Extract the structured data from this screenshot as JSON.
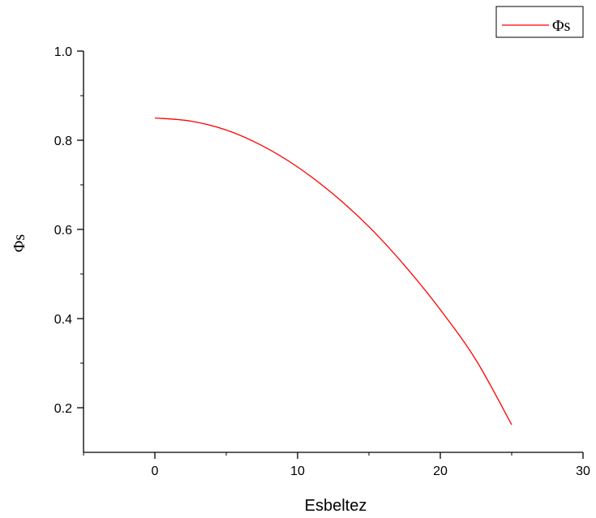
{
  "chart_data": {
    "type": "line",
    "title": "",
    "xlabel": "Esbeltez",
    "ylabel": "Φs",
    "xlim": [
      -5,
      30
    ],
    "ylim": [
      0.1,
      1.0
    ],
    "xticks": [
      0,
      10,
      20,
      30
    ],
    "xtick_labels": [
      "0",
      "10",
      "20",
      "30"
    ],
    "yticks": [
      0.2,
      0.4,
      0.6,
      0.8,
      1.0
    ],
    "ytick_labels": [
      "0.2",
      "0.4",
      "0.6",
      "0.8",
      "1.0"
    ],
    "grid": false,
    "legend": {
      "placement": "top-right",
      "entries": [
        "Φs"
      ]
    },
    "series": [
      {
        "name": "Φs",
        "color": "#ff0000",
        "x": [
          0,
          2.5,
          5,
          7.5,
          10,
          12.5,
          15,
          17.5,
          20,
          22.5,
          25
        ],
        "y": [
          0.85,
          0.843,
          0.823,
          0.788,
          0.74,
          0.679,
          0.606,
          0.519,
          0.42,
          0.307,
          0.162
        ]
      }
    ]
  }
}
